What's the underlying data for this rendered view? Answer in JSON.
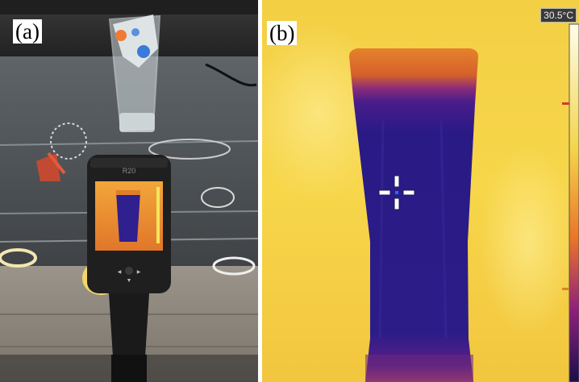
{
  "figure": {
    "panels": [
      {
        "label": "(a)",
        "content": "photo of handheld thermal camera imaging a glass of water"
      },
      {
        "label": "(b)",
        "temperature_readout": "30.5°C"
      }
    ],
    "camera": {
      "screen_label": "R20"
    },
    "colors": {
      "thermal_background": "#f6d246",
      "glass_cold": "#2a1a86",
      "glass_rim": "#e07e2a",
      "camera_body": "#1f1f1f"
    },
    "icons": [
      "crosshair-icon"
    ]
  }
}
